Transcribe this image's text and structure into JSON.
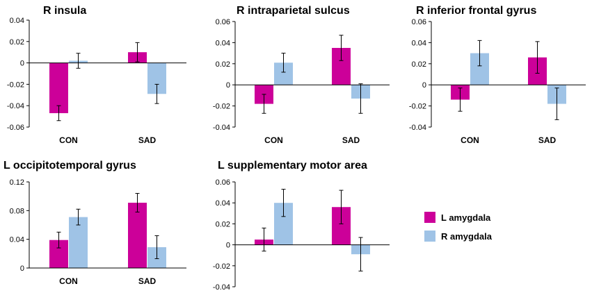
{
  "colors": {
    "L amygdala": "#cc0099",
    "R amygdala": "#9fc3e6"
  },
  "legend": {
    "items": [
      {
        "label": "L amygdala",
        "color": "#cc0099"
      },
      {
        "label": "R amygdala",
        "color": "#9fc3e6"
      }
    ]
  },
  "chart_data": [
    {
      "type": "bar",
      "title": "R insula",
      "categories": [
        "CON",
        "SAD"
      ],
      "ylim": [
        -0.06,
        0.04
      ],
      "yticks": [
        -0.06,
        -0.04,
        -0.02,
        0,
        0.02,
        0.04
      ],
      "tick_labels": [
        "-0.06",
        "-0.04",
        "-0.02",
        "0",
        "0.02",
        "0.04"
      ],
      "series": [
        {
          "name": "L amygdala",
          "values": [
            -0.047,
            0.01
          ],
          "errors": [
            0.007,
            0.009
          ]
        },
        {
          "name": "R amygdala",
          "values": [
            0.002,
            -0.029
          ],
          "errors": [
            0.007,
            0.009
          ]
        }
      ]
    },
    {
      "type": "bar",
      "title": "R intraparietal sulcus",
      "categories": [
        "CON",
        "SAD"
      ],
      "ylim": [
        -0.04,
        0.06
      ],
      "yticks": [
        -0.04,
        -0.02,
        0,
        0.02,
        0.04,
        0.06
      ],
      "tick_labels": [
        "-0.04",
        "-0.02",
        "0",
        "0.02",
        "0.04",
        "0.06"
      ],
      "series": [
        {
          "name": "L amygdala",
          "values": [
            -0.018,
            0.035
          ],
          "errors": [
            0.009,
            0.012
          ]
        },
        {
          "name": "R amygdala",
          "values": [
            0.021,
            -0.013
          ],
          "errors": [
            0.009,
            0.014
          ]
        }
      ]
    },
    {
      "type": "bar",
      "title": "R inferior frontal gyrus",
      "categories": [
        "CON",
        "SAD"
      ],
      "ylim": [
        -0.04,
        0.06
      ],
      "yticks": [
        -0.04,
        -0.02,
        0,
        0.02,
        0.04,
        0.06
      ],
      "tick_labels": [
        "-0.04",
        "-0.02",
        "0",
        "0.02",
        "0.04",
        "0.06"
      ],
      "series": [
        {
          "name": "L amygdala",
          "values": [
            -0.014,
            0.026
          ],
          "errors": [
            0.011,
            0.015
          ]
        },
        {
          "name": "R amygdala",
          "values": [
            0.03,
            -0.018
          ],
          "errors": [
            0.012,
            0.015
          ]
        }
      ]
    },
    {
      "type": "bar",
      "title": "L occipitotemporal  gyrus",
      "categories": [
        "CON",
        "SAD"
      ],
      "ylim": [
        0,
        0.12
      ],
      "yticks": [
        0,
        0.04,
        0.08,
        0.12
      ],
      "tick_labels": [
        "0",
        "0.04",
        "0.08",
        "0.12"
      ],
      "series": [
        {
          "name": "L amygdala",
          "values": [
            0.039,
            0.091
          ],
          "errors": [
            0.011,
            0.013
          ]
        },
        {
          "name": "R amygdala",
          "values": [
            0.071,
            0.029
          ],
          "errors": [
            0.011,
            0.016
          ]
        }
      ]
    },
    {
      "type": "bar",
      "title": "L supplementary motor area",
      "categories": [
        "CON",
        "SAD"
      ],
      "ylim": [
        -0.04,
        0.06
      ],
      "yticks": [
        -0.04,
        -0.02,
        0,
        0.02,
        0.04,
        0.06
      ],
      "tick_labels": [
        "-0.04",
        "-0.02",
        "0",
        "0.02",
        "0.04",
        "0.06"
      ],
      "series": [
        {
          "name": "L amygdala",
          "values": [
            0.005,
            0.036
          ],
          "errors": [
            0.011,
            0.016
          ]
        },
        {
          "name": "R amygdala",
          "values": [
            0.04,
            -0.009
          ],
          "errors": [
            0.013,
            0.016
          ]
        }
      ]
    }
  ]
}
